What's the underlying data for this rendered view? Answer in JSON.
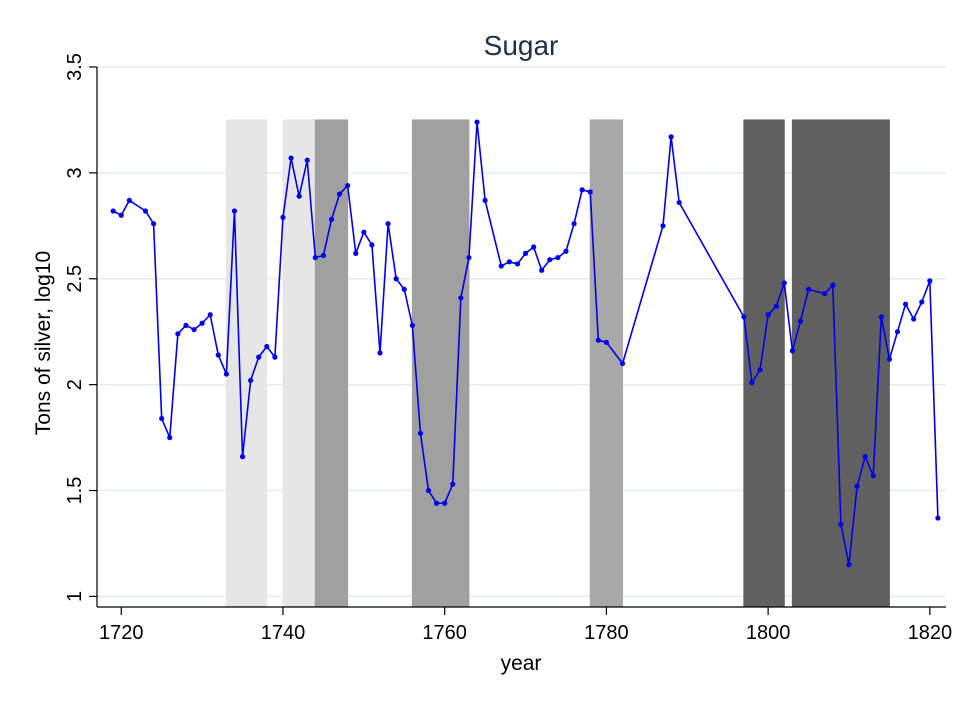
{
  "chart_data": {
    "type": "line",
    "title": "Sugar",
    "xlabel": "year",
    "ylabel": "Tons of silver, log10",
    "xlim": [
      1717,
      1822
    ],
    "ylim": [
      0.95,
      3.5
    ],
    "xticks": [
      1720,
      1740,
      1760,
      1780,
      1800,
      1820
    ],
    "xtick_labels": [
      "1720",
      "1740",
      "1760",
      "1780",
      "1800",
      "1820"
    ],
    "yticks": [
      1,
      1.5,
      2,
      2.5,
      3,
      3.5
    ],
    "ytick_labels": [
      "1",
      "1.5",
      "2",
      "2.5",
      "3",
      "3.5"
    ],
    "grid": true,
    "series_color": "#0000ee",
    "shaded_periods": [
      {
        "start": 1733,
        "end": 1738,
        "color": "#e6e6e6"
      },
      {
        "start": 1740,
        "end": 1744,
        "color": "#e6e6e6"
      },
      {
        "start": 1744,
        "end": 1748,
        "color": "#a0a0a0"
      },
      {
        "start": 1756,
        "end": 1763,
        "color": "#a0a0a0"
      },
      {
        "start": 1778,
        "end": 1782,
        "color": "#a8a8a8"
      },
      {
        "start": 1797,
        "end": 1802,
        "color": "#606060"
      },
      {
        "start": 1803,
        "end": 1815,
        "color": "#606060"
      }
    ],
    "shade_top": 3.25,
    "series": [
      {
        "x": [
          1719,
          1720,
          1721,
          1723,
          1724,
          1725,
          1726,
          1727,
          1728,
          1729,
          1730,
          1731,
          1732,
          1733,
          1734,
          1735,
          1736,
          1737,
          1738,
          1739,
          1740,
          1741,
          1742,
          1743,
          1744,
          1745,
          1746,
          1747,
          1748,
          1749,
          1750,
          1751,
          1752,
          1753,
          1754,
          1755,
          1756,
          1757,
          1758,
          1759,
          1760,
          1761,
          1762,
          1763,
          1764,
          1765,
          1767,
          1768,
          1769,
          1770,
          1771,
          1772,
          1773,
          1774,
          1775,
          1776,
          1777,
          1778,
          1779,
          1780,
          1782,
          1787,
          1788,
          1789,
          1797,
          1798,
          1799,
          1800,
          1801,
          1802,
          1803,
          1804,
          1805,
          1807,
          1808,
          1809,
          1810,
          1811,
          1812,
          1813,
          1814,
          1815,
          1816,
          1817,
          1818,
          1819,
          1820,
          1821
        ],
        "y": [
          2.82,
          2.8,
          2.87,
          2.82,
          2.76,
          1.84,
          1.75,
          2.24,
          2.28,
          2.26,
          2.29,
          2.33,
          2.14,
          2.05,
          2.82,
          1.66,
          2.02,
          2.13,
          2.18,
          2.13,
          2.79,
          3.07,
          2.89,
          3.06,
          2.6,
          2.61,
          2.78,
          2.9,
          2.94,
          2.62,
          2.72,
          2.66,
          2.15,
          2.76,
          2.5,
          2.45,
          2.28,
          1.77,
          1.5,
          1.44,
          1.44,
          1.53,
          2.41,
          2.6,
          3.24,
          2.87,
          2.56,
          2.58,
          2.57,
          2.62,
          2.65,
          2.54,
          2.59,
          2.6,
          2.63,
          2.76,
          2.92,
          2.91,
          2.21,
          2.2,
          2.1,
          2.75,
          3.17,
          2.86,
          2.32,
          2.01,
          2.07,
          2.33,
          2.37,
          2.48,
          2.16,
          2.3,
          2.45,
          2.43,
          2.47,
          1.34,
          1.15,
          1.52,
          1.66,
          1.57,
          2.32,
          2.12,
          2.25,
          2.38,
          2.31,
          2.39,
          2.49,
          1.37
        ]
      }
    ]
  }
}
